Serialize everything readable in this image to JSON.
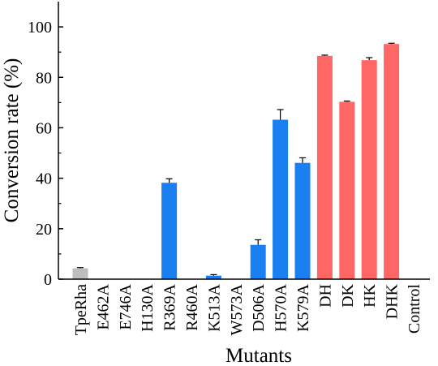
{
  "chart_data": {
    "type": "bar",
    "xlabel": "Mutants",
    "ylabel": "Conversion rate (%)",
    "ylim": [
      0,
      110
    ],
    "yticks": [
      0,
      20,
      40,
      60,
      80,
      100
    ],
    "grid": false,
    "categories": [
      "TpeRha",
      "E462A",
      "E746A",
      "H130A",
      "R369A",
      "R460A",
      "K513A",
      "W573A",
      "D506A",
      "H570A",
      "K579A",
      "DH",
      "DK",
      "HK",
      "DHK",
      "Control"
    ],
    "values": [
      4.3,
      0,
      0,
      0,
      38.2,
      0,
      1.4,
      0,
      13.6,
      63.2,
      46.1,
      88.5,
      70.3,
      86.8,
      93.2,
      0
    ],
    "errors": [
      0.3,
      0,
      0,
      0,
      1.6,
      0,
      0.4,
      0,
      2.0,
      4.0,
      2.0,
      0.3,
      0.3,
      1.0,
      0.3,
      0
    ],
    "colors": [
      "#bebebe",
      "#bebebe",
      "#bebebe",
      "#bebebe",
      "#1a7ff0",
      "#1a7ff0",
      "#1a7ff0",
      "#1a7ff0",
      "#1a7ff0",
      "#1a7ff0",
      "#1a7ff0",
      "#ff6666",
      "#ff6666",
      "#ff6666",
      "#ff6666",
      "#ff6666"
    ]
  }
}
